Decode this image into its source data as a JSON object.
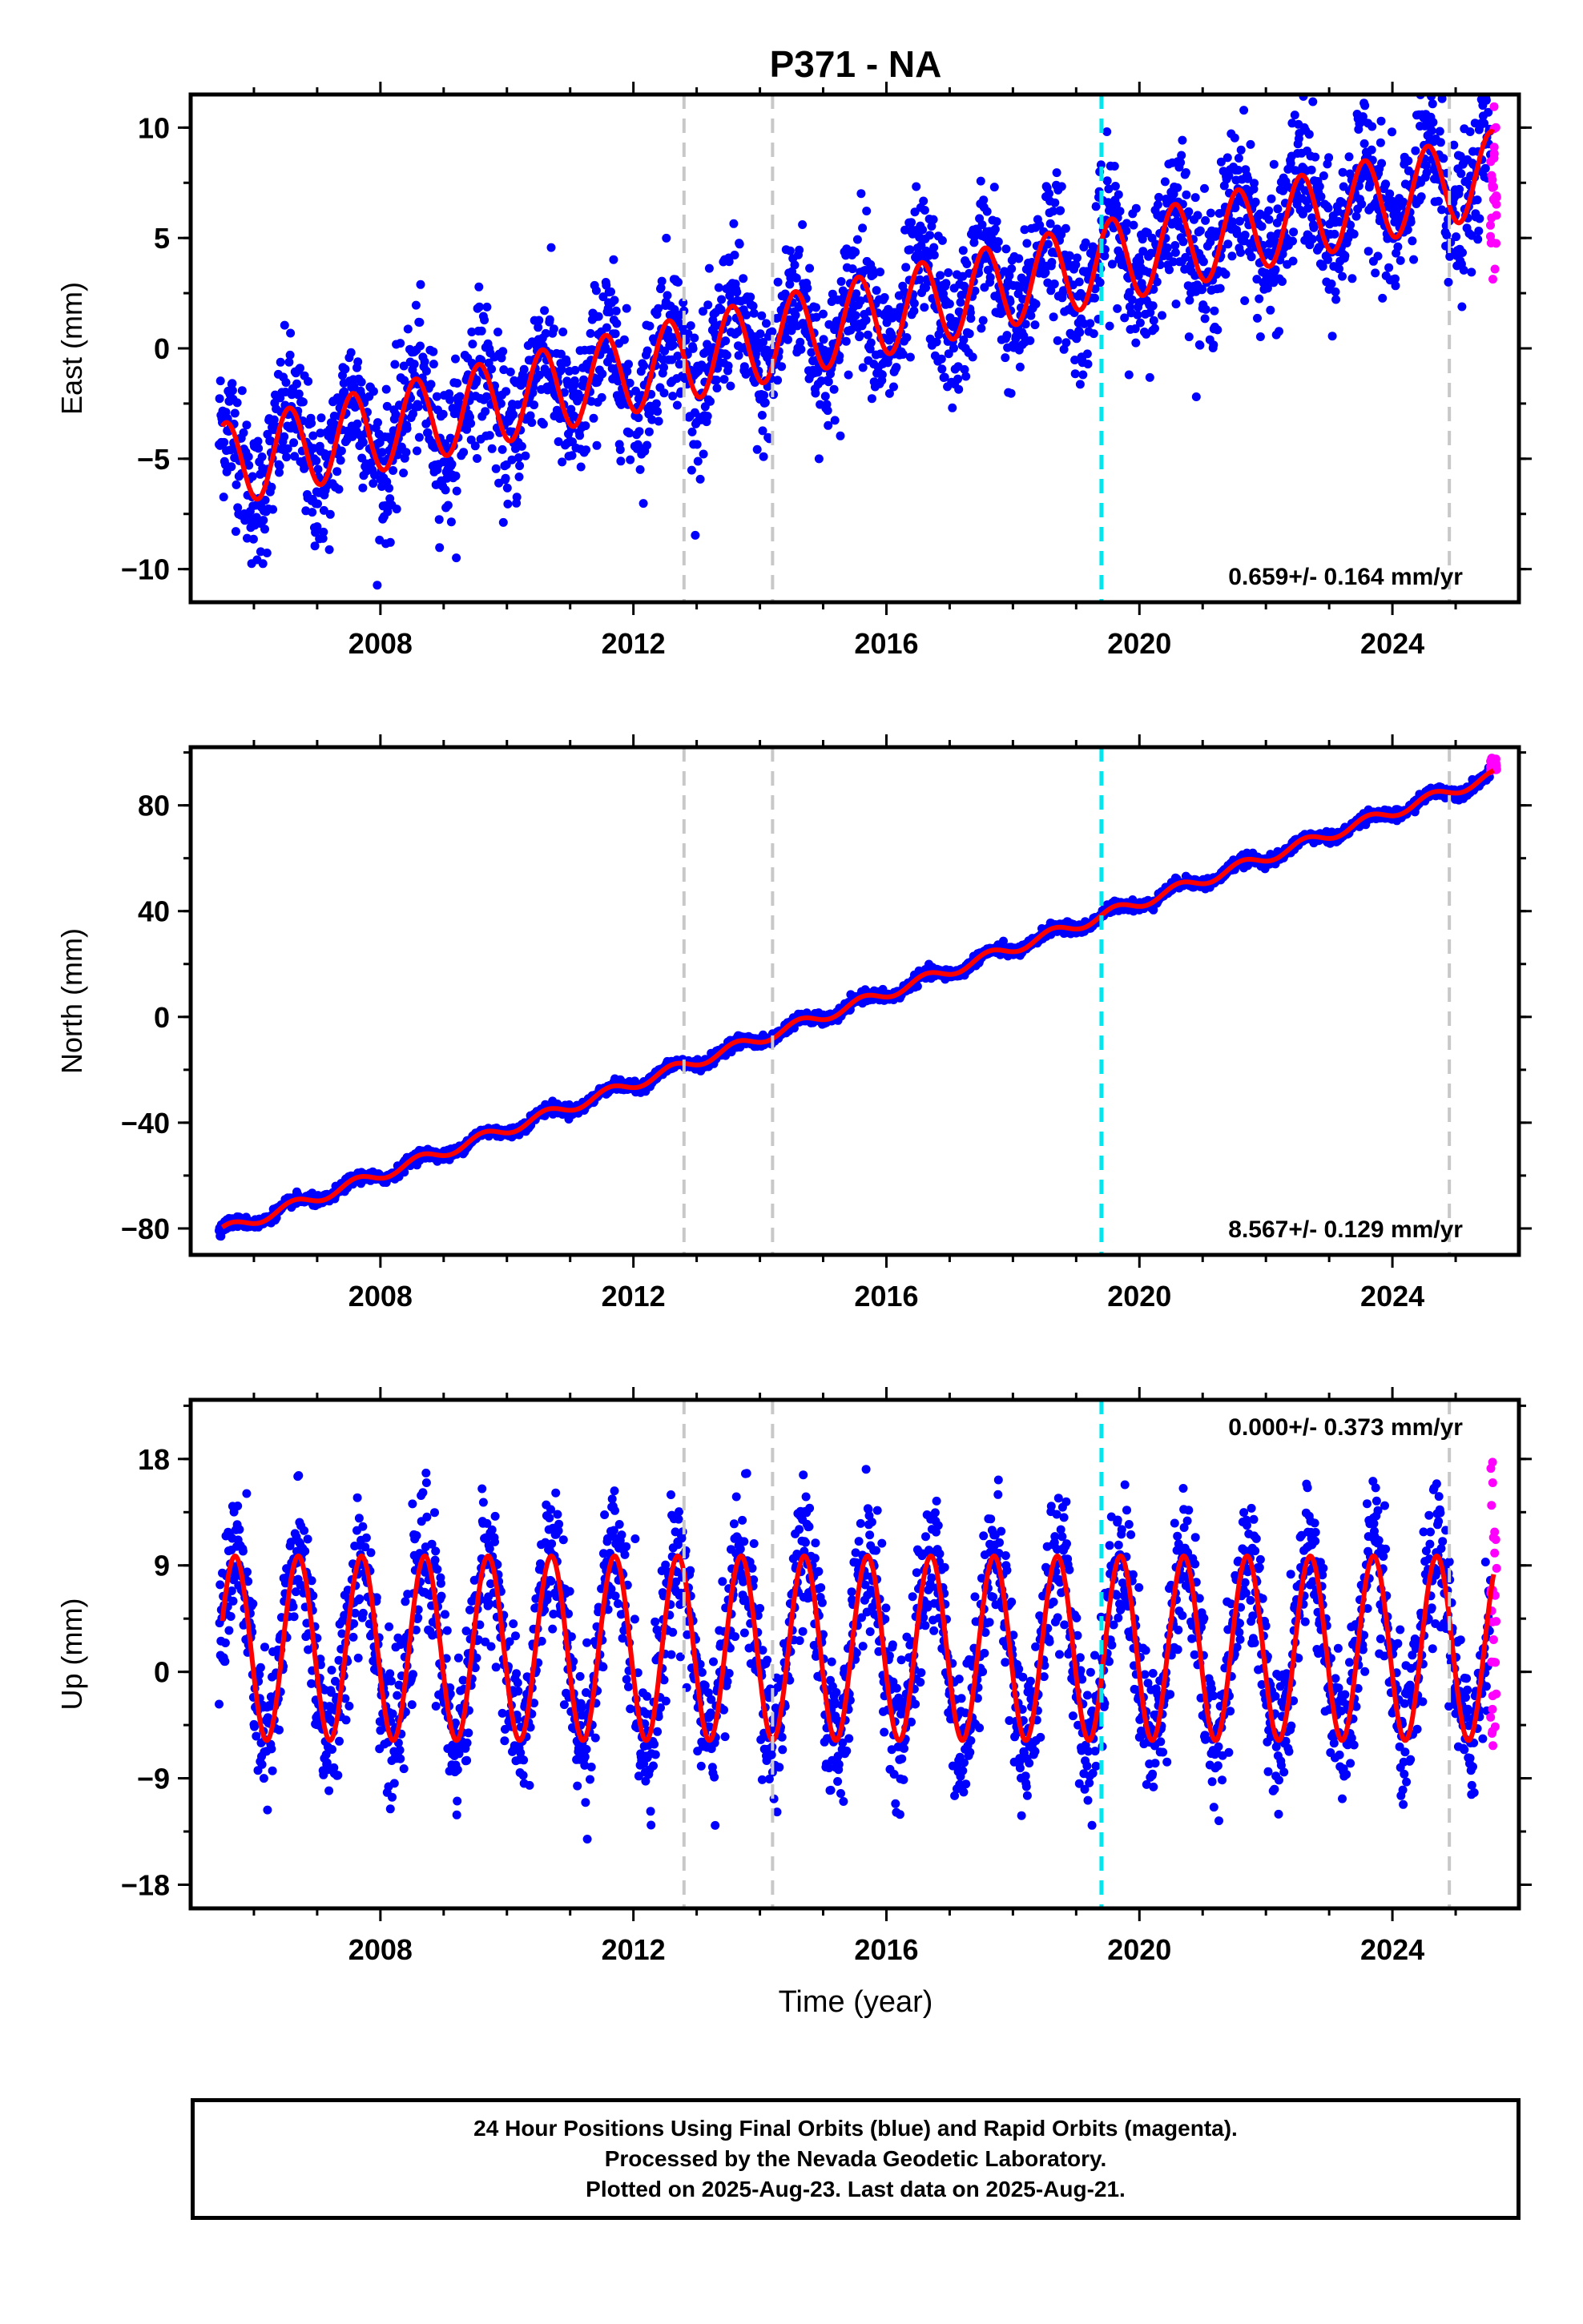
{
  "title": "P371 - NA",
  "chart_data": {
    "type": "scatter",
    "x_ticks": [
      2008,
      2012,
      2016,
      2020,
      2024
    ],
    "xlabel": "Time (year)",
    "xlim": [
      2005.0,
      2026.0
    ],
    "event_lines": [
      {
        "x": 2012.8,
        "color": "#c8c8c8"
      },
      {
        "x": 2014.2,
        "color": "#c8c8c8"
      },
      {
        "x": 2019.4,
        "color": "#00e5ee"
      },
      {
        "x": 2024.9,
        "color": "#c8c8c8"
      }
    ],
    "series_colors": {
      "final_orbits": "#0000ff",
      "rapid_orbits": "#ff00ff",
      "model_fit": "#ff0000"
    },
    "panels": [
      {
        "ylabel": "East (mm)",
        "ylim": [
          -11.5,
          11.5
        ],
        "y_ticks": [
          10,
          5,
          0,
          -5,
          -10
        ],
        "y_tick_labels": [
          "10",
          "5",
          "0",
          "−5",
          "−10"
        ],
        "rate_label": "0.659+/- 0.164 mm/yr",
        "rate_position": "bottom-right",
        "fit": {
          "start_year": 2005.5,
          "start_value": -5.3,
          "rate": 0.659,
          "amplitude": 1.9,
          "phase": 1.2
        },
        "noise": 1.6,
        "rapid": {
          "from": 2025.55,
          "to": 2025.65,
          "min": 3.0,
          "max": 11.0
        }
      },
      {
        "ylabel": "North (mm)",
        "ylim": [
          -90,
          102
        ],
        "y_ticks": [
          80,
          40,
          0,
          -40,
          -80
        ],
        "y_tick_labels": [
          "80",
          "40",
          "0",
          "−40",
          "−80"
        ],
        "rate_label": "8.567+/- 0.129 mm/yr",
        "rate_position": "bottom-right",
        "fit": {
          "start_year": 2005.5,
          "start_value": -81,
          "rate": 8.567,
          "amplitude": 2.0,
          "phase": 0.8
        },
        "noise": 1.0,
        "rapid": {
          "from": 2025.55,
          "to": 2025.65,
          "min": 93.0,
          "max": 98.0
        }
      },
      {
        "ylabel": "Up (mm)",
        "ylim": [
          -20,
          23
        ],
        "y_ticks": [
          18,
          9,
          0,
          -9,
          -18
        ],
        "y_tick_labels": [
          "18",
          "9",
          "0",
          "−9",
          "−18"
        ],
        "rate_label": "0.000+/- 0.373 mm/yr",
        "rate_position": "top-right",
        "fit": {
          "start_year": 2005.5,
          "start_value": 2.0,
          "rate": 0.0,
          "amplitude": 7.8,
          "phase": 0.3
        },
        "noise": 3.0,
        "rapid": {
          "from": 2025.55,
          "to": 2025.65,
          "min": -7.0,
          "max": 18.0
        }
      }
    ]
  },
  "footer": {
    "line1": "24 Hour Positions Using Final Orbits (blue) and Rapid Orbits (magenta).",
    "line2": "Processed by the Nevada Geodetic Laboratory.",
    "line3": "Plotted on 2025-Aug-23. Last data on 2025-Aug-21."
  }
}
